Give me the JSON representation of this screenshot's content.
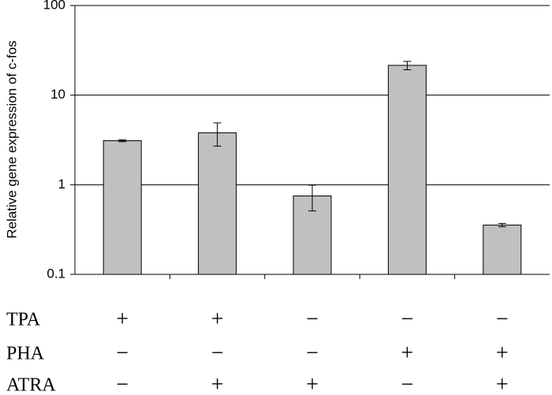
{
  "chart_data": {
    "type": "bar",
    "y_label": "Relative gene expression of c-fos",
    "categories": [
      null,
      null,
      null,
      null,
      null
    ],
    "series": [
      {
        "color": "#c0c0c0",
        "values": [
          3.1,
          3.8,
          0.75,
          21.5,
          0.355
        ],
        "errors": [
          0.08,
          1.1,
          0.24,
          2.3,
          0.015
        ]
      }
    ],
    "ylim": [
      0.1,
      100
    ],
    "yticks": [
      0.1,
      1,
      10,
      100
    ],
    "log_y": true,
    "grid": true,
    "treatment_table": {
      "rows": [
        {
          "label": "TPA",
          "values": [
            "+",
            "+",
            "−",
            "−",
            "−"
          ]
        },
        {
          "label": "PHA",
          "values": [
            "−",
            "−",
            "−",
            "+",
            "+"
          ]
        },
        {
          "label": "ATRA",
          "values": [
            "−",
            "+",
            "+",
            "−",
            "+"
          ]
        }
      ]
    }
  }
}
